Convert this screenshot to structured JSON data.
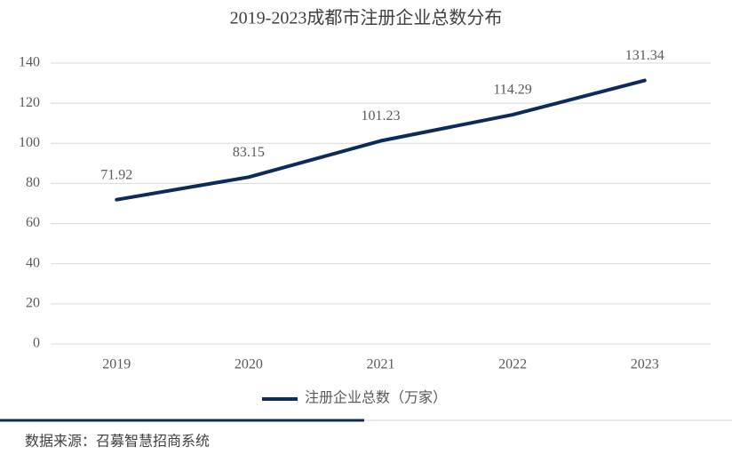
{
  "chart_data": {
    "type": "line",
    "title": "2019-2023成都市注册企业总数分布",
    "categories": [
      "2019",
      "2020",
      "2021",
      "2022",
      "2023"
    ],
    "series": [
      {
        "name": "注册企业总数（万家）",
        "color": "#0d2a5c",
        "values": [
          71.92,
          83.15,
          101.23,
          114.29,
          131.34
        ]
      }
    ],
    "ylim": [
      0,
      140
    ],
    "yticks": [
      0,
      20,
      40,
      60,
      80,
      100,
      120,
      140
    ],
    "grid": true,
    "legend": "bottom"
  },
  "source": "数据来源：召募智慧招商系统"
}
